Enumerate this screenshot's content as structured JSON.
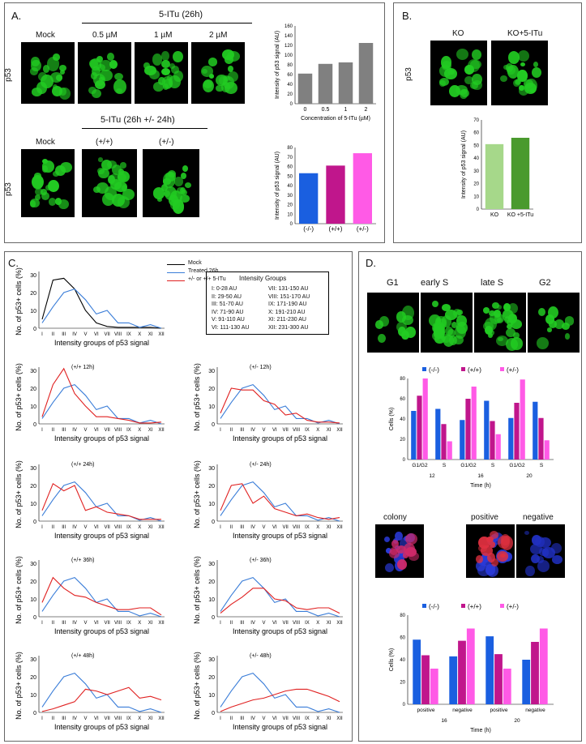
{
  "panelA": {
    "letter": "A.",
    "header_top": "5-ITu (26h)",
    "top_labels": [
      "Mock",
      "0.5 µM",
      "1 µM",
      "2 µM"
    ],
    "row_label": "p53",
    "header_bottom": "5-ITu (26h +/- 24h)",
    "bottom_labels": [
      "Mock",
      "(+/+)",
      "(+/-)"
    ],
    "row_label_bottom": "p53"
  },
  "panelB": {
    "letter": "B.",
    "labels": [
      "KO",
      "KO+5-ITu"
    ],
    "row_label": "p53"
  },
  "panelC": {
    "letter": "C.",
    "legend": {
      "mock": "Mock",
      "treated": "Treated 26h",
      "pm": "+/- or +/+ 5-ITu"
    },
    "intensity_title": "Intensity Groups",
    "intensity_left": [
      "I: 0-28 AU",
      "II: 29-50 AU",
      "III: 51-70 AU",
      "IV: 71-90 AU",
      "V: 91-110 AU",
      "VI: 111-130 AU"
    ],
    "intensity_right": [
      "VII: 131-150 AU",
      "VIII: 151-170 AU",
      "IX: 171-190 AU",
      "X: 191-210 AU",
      "XI: 211-230 AU",
      "XII: 231-300 AU"
    ]
  },
  "panelD": {
    "letter": "D.",
    "phase_labels": [
      "G1",
      "early S",
      "late S",
      "G2"
    ],
    "colony_labels": [
      "colony",
      "positive",
      "negative"
    ]
  },
  "colors": {
    "mock": "#000000",
    "treated": "#3a7dd8",
    "pm": "#e02020",
    "grey_bar": "#808080",
    "blue": "#1a5fe0",
    "magenta": "#c0168c",
    "pink": "#ff5ae6",
    "light_green": "#a6d88a",
    "dark_green": "#4a9a2e",
    "green": "#22cc22"
  },
  "chart_data": [
    {
      "id": "A_top_bar",
      "type": "bar",
      "categories": [
        "0",
        "0.5",
        "1",
        "2"
      ],
      "values": [
        62,
        82,
        85,
        125
      ],
      "xlabel": "Concentration of 5-ITu (µM)",
      "ylabel": "Intensity of p53 signal (AU)",
      "yticks": [
        "0",
        "20",
        "40",
        "60",
        "80",
        "100",
        "120",
        "140",
        "160"
      ],
      "ylim": [
        0,
        160
      ]
    },
    {
      "id": "A_bottom_bar",
      "type": "bar",
      "categories": [
        "(-/-)",
        "(+/+)",
        "(+/-)"
      ],
      "values": [
        53,
        61,
        74
      ],
      "ylabel": "Intensity of p53 signal (AU)",
      "yticks": [
        "0",
        "10",
        "20",
        "30",
        "40",
        "50",
        "60",
        "70",
        "80"
      ],
      "ylim": [
        0,
        80
      ]
    },
    {
      "id": "B_bar",
      "type": "bar",
      "categories": [
        "KO",
        "KO +5-ITu"
      ],
      "values": [
        51,
        56
      ],
      "ylabel": "Intensity of p53 signal (AU)",
      "yticks": [
        "0",
        "10",
        "20",
        "30",
        "40",
        "50",
        "60",
        "70"
      ],
      "ylim": [
        0,
        70
      ]
    },
    {
      "id": "C_top",
      "type": "line",
      "categories": [
        "I",
        "II",
        "III",
        "IV",
        "V",
        "VI",
        "VII",
        "VIII",
        "IX",
        "X",
        "XI",
        "XII"
      ],
      "series": [
        {
          "name": "Mock",
          "values": [
            5,
            27,
            28,
            22,
            10,
            3,
            1,
            0.5,
            0.5,
            0.5,
            0.5,
            0
          ]
        },
        {
          "name": "Treated 26h",
          "values": [
            3,
            12,
            20,
            22,
            16,
            8,
            10,
            3,
            3,
            0.5,
            2,
            0
          ]
        }
      ],
      "xlabel": "Intensity groups of p53 signal",
      "ylabel": "No. of p53+ cells (%)",
      "yticks": [
        "0",
        "10",
        "20",
        "30"
      ],
      "ylim": [
        0,
        30
      ]
    },
    {
      "id": "C_pp12",
      "type": "line",
      "title": "(+/+ 12h)",
      "categories": [
        "I",
        "II",
        "III",
        "IV",
        "V",
        "VI",
        "VII",
        "VIII",
        "IX",
        "X",
        "XI",
        "XII"
      ],
      "series": [
        {
          "name": "Treated 26h",
          "values": [
            3,
            12,
            20,
            22,
            16,
            8,
            10,
            3,
            3,
            0.5,
            2,
            0
          ]
        },
        {
          "name": "+/- or +/+ 5-ITu",
          "values": [
            4,
            22,
            31,
            17,
            10,
            4,
            4,
            3,
            2,
            0.5,
            0.5,
            1
          ]
        }
      ],
      "xlabel": "Intensity groups of p53 signal",
      "ylabel": "No. of p53+ cells (%)",
      "yticks": [
        "0",
        "10",
        "20",
        "30"
      ],
      "ylim": [
        0,
        30
      ]
    },
    {
      "id": "C_pm12",
      "type": "line",
      "title": "(+/- 12h)",
      "categories": [
        "I",
        "II",
        "III",
        "IV",
        "V",
        "VI",
        "VII",
        "VIII",
        "IX",
        "X",
        "XI",
        "XII"
      ],
      "series": [
        {
          "name": "Treated 26h",
          "values": [
            3,
            12,
            20,
            22,
            16,
            8,
            10,
            3,
            3,
            0.5,
            2,
            0
          ]
        },
        {
          "name": "+/- or +/+ 5-ITu",
          "values": [
            6,
            20,
            19,
            19,
            13,
            11,
            5,
            6,
            2,
            1,
            1,
            0.5
          ]
        }
      ],
      "xlabel": "Intensity groups of p53 signal",
      "ylabel": "No. of p53+ cells (%)",
      "yticks": [
        "0",
        "10",
        "20",
        "30"
      ],
      "ylim": [
        0,
        30
      ]
    },
    {
      "id": "C_pp24",
      "type": "line",
      "title": "(+/+ 24h)",
      "categories": [
        "I",
        "II",
        "III",
        "IV",
        "V",
        "VI",
        "VII",
        "VIII",
        "IX",
        "X",
        "XI",
        "XII"
      ],
      "series": [
        {
          "name": "Treated 26h",
          "values": [
            3,
            12,
            20,
            22,
            16,
            8,
            10,
            3,
            3,
            0.5,
            2,
            0
          ]
        },
        {
          "name": "+/- or +/+ 5-ITu",
          "values": [
            6,
            21,
            17,
            20,
            6,
            8,
            5,
            4,
            3,
            1,
            1,
            1
          ]
        }
      ],
      "xlabel": "Intensity groups of p53 signal",
      "ylabel": "No. of p53+ cells (%)",
      "yticks": [
        "0",
        "10",
        "20",
        "30"
      ],
      "ylim": [
        0,
        30
      ]
    },
    {
      "id": "C_pm24",
      "type": "line",
      "title": "(+/- 24h)",
      "categories": [
        "I",
        "II",
        "III",
        "IV",
        "V",
        "VI",
        "VII",
        "VIII",
        "IX",
        "X",
        "XI",
        "XII"
      ],
      "series": [
        {
          "name": "Treated 26h",
          "values": [
            3,
            12,
            20,
            22,
            16,
            8,
            10,
            3,
            3,
            0.5,
            2,
            0
          ]
        },
        {
          "name": "+/- or +/+ 5-ITu",
          "values": [
            6,
            20,
            21,
            10,
            14,
            7,
            5,
            3,
            4,
            2,
            1,
            2
          ]
        }
      ],
      "xlabel": "Intensity groups of p53 signal",
      "ylabel": "No. of p53+ cells (%)",
      "yticks": [
        "0",
        "10",
        "20",
        "30"
      ],
      "ylim": [
        0,
        30
      ]
    },
    {
      "id": "C_pp36",
      "type": "line",
      "title": "(+/+ 36h)",
      "categories": [
        "I",
        "II",
        "III",
        "IV",
        "V",
        "VI",
        "VII",
        "VIII",
        "IX",
        "X",
        "XI",
        "XII"
      ],
      "series": [
        {
          "name": "Treated 26h",
          "values": [
            3,
            12,
            20,
            22,
            16,
            8,
            10,
            3,
            3,
            0.5,
            2,
            0
          ]
        },
        {
          "name": "+/- or +/+ 5-ITu",
          "values": [
            8,
            22,
            16,
            12,
            11,
            8,
            6,
            4,
            4,
            5,
            5,
            1
          ]
        }
      ],
      "xlabel": "Intensity groups of p53 signal",
      "ylabel": "No. of p53+ cells (%)",
      "yticks": [
        "0",
        "10",
        "20",
        "30"
      ],
      "ylim": [
        0,
        30
      ]
    },
    {
      "id": "C_pm36",
      "type": "line",
      "title": "(+/- 36h)",
      "categories": [
        "I",
        "II",
        "III",
        "IV",
        "V",
        "VI",
        "VII",
        "VIII",
        "IX",
        "X",
        "XI",
        "XII"
      ],
      "series": [
        {
          "name": "Treated 26h",
          "values": [
            3,
            12,
            20,
            22,
            16,
            8,
            10,
            3,
            3,
            0.5,
            2,
            0
          ]
        },
        {
          "name": "+/- or +/+ 5-ITu",
          "values": [
            2,
            7,
            11,
            16,
            16,
            10,
            9,
            5,
            4,
            5,
            5,
            2
          ]
        }
      ],
      "xlabel": "Intensity groups of p53 signal",
      "ylabel": "No. of p53+ cells (%)",
      "yticks": [
        "0",
        "10",
        "20",
        "30"
      ],
      "ylim": [
        0,
        30
      ]
    },
    {
      "id": "C_pp48",
      "type": "line",
      "title": "(+/+ 48h)",
      "categories": [
        "I",
        "II",
        "III",
        "IV",
        "V",
        "VI",
        "VII",
        "VIII",
        "IX",
        "X",
        "XI",
        "XII"
      ],
      "series": [
        {
          "name": "Treated 26h",
          "values": [
            3,
            12,
            20,
            22,
            16,
            8,
            10,
            3,
            3,
            0.5,
            2,
            0
          ]
        },
        {
          "name": "+/- or +/+ 5-ITu",
          "values": [
            0.5,
            2,
            4,
            6,
            13,
            12,
            10,
            12,
            14,
            8,
            9,
            7
          ]
        }
      ],
      "xlabel": "Intensity groups of p53 signal",
      "ylabel": "No. of p53+ cells (%)",
      "yticks": [
        "0",
        "10",
        "20",
        "30"
      ],
      "ylim": [
        0,
        30
      ]
    },
    {
      "id": "C_pm48",
      "type": "line",
      "title": "(+/- 48h)",
      "categories": [
        "I",
        "II",
        "III",
        "IV",
        "V",
        "VI",
        "VII",
        "VIII",
        "IX",
        "X",
        "XI",
        "XII"
      ],
      "series": [
        {
          "name": "Treated 26h",
          "values": [
            3,
            12,
            20,
            22,
            16,
            8,
            10,
            3,
            3,
            0.5,
            2,
            0
          ]
        },
        {
          "name": "+/- or +/+ 5-ITu",
          "values": [
            0.5,
            3,
            5,
            7,
            8,
            10,
            12,
            13,
            13,
            11,
            9,
            6
          ]
        }
      ],
      "xlabel": "Intensity groups of p53 signal",
      "ylabel": "No. of p53+ cells (%)",
      "yticks": [
        "0",
        "10",
        "20",
        "30"
      ],
      "ylim": [
        0,
        30
      ]
    },
    {
      "id": "D_top_bar",
      "type": "bar",
      "groups": [
        "12",
        "16",
        "20"
      ],
      "categories": [
        "G1/G2",
        "S",
        "G1/G2",
        "S",
        "G1/G2",
        "S"
      ],
      "series": [
        {
          "name": "(-/-)",
          "values": [
            48,
            50,
            39,
            58,
            41,
            57
          ]
        },
        {
          "name": "(+/+)",
          "values": [
            63,
            35,
            60,
            38,
            56,
            41
          ]
        },
        {
          "name": "(+/-)",
          "values": [
            80,
            18,
            72,
            25,
            79,
            19
          ]
        }
      ],
      "xlabel": "Time (h)",
      "ylabel": "Cells (%)",
      "yticks": [
        "0",
        "20",
        "40",
        "60",
        "80"
      ],
      "ylim": [
        0,
        80
      ]
    },
    {
      "id": "D_bottom_bar",
      "type": "bar",
      "groups": [
        "16",
        "20"
      ],
      "categories": [
        "positive",
        "negative",
        "positive",
        "negative"
      ],
      "series": [
        {
          "name": "(-/-)",
          "values": [
            58,
            43,
            61,
            40
          ]
        },
        {
          "name": "(+/+)",
          "values": [
            44,
            57,
            45,
            56
          ]
        },
        {
          "name": "(+/-)",
          "values": [
            32,
            68,
            32,
            68
          ]
        }
      ],
      "xlabel": "Time (h)",
      "ylabel": "Cells (%)",
      "yticks": [
        "0",
        "20",
        "40",
        "60",
        "80"
      ],
      "ylim": [
        0,
        80
      ]
    }
  ]
}
